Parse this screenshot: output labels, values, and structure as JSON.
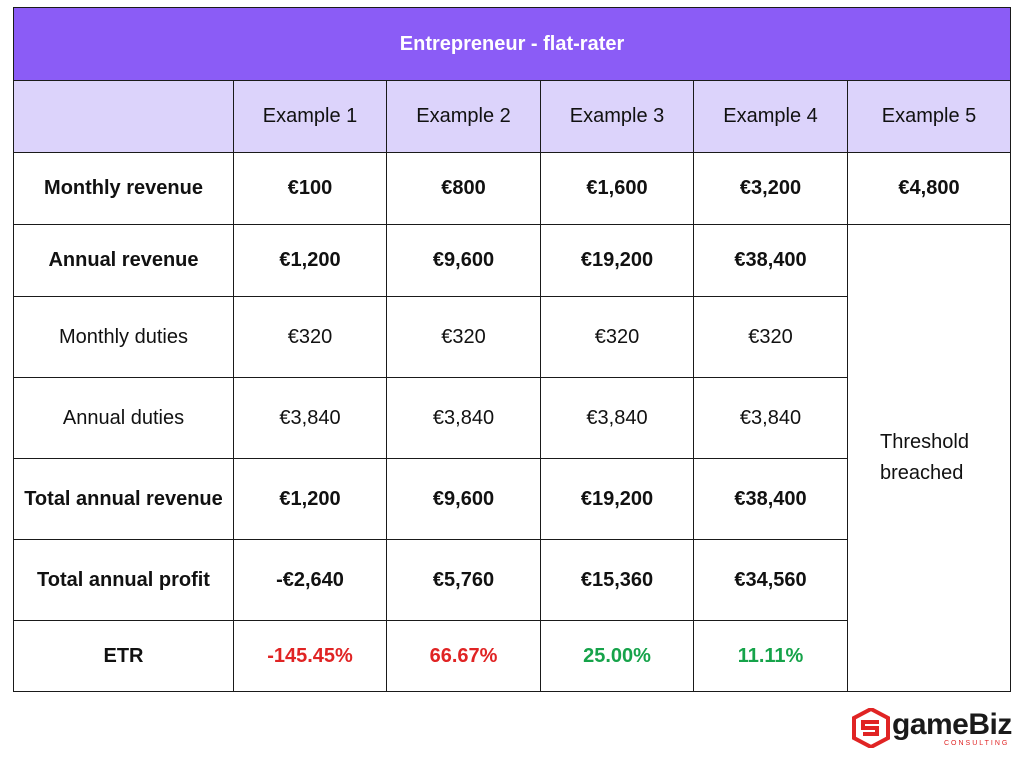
{
  "table": {
    "title": "Entrepreneur - flat-rater",
    "columns": [
      "",
      "Example 1",
      "Example 2",
      "Example 3",
      "Example 4",
      "Example 5"
    ],
    "rows": [
      {
        "label": "Monthly revenue",
        "values": [
          "€100",
          "€800",
          "€1,600",
          "€3,200",
          "€4,800"
        ]
      },
      {
        "label": "Annual revenue",
        "values": [
          "€1,200",
          "€9,600",
          "€19,200",
          "€38,400"
        ]
      },
      {
        "label": "Monthly duties",
        "values": [
          "€320",
          "€320",
          "€320",
          "€320"
        ]
      },
      {
        "label": "Annual duties",
        "values": [
          "€3,840",
          "€3,840",
          "€3,840",
          "€3,840"
        ]
      },
      {
        "label": "Total annual revenue",
        "values": [
          "€1,200",
          "€9,600",
          "€19,200",
          "€38,400"
        ]
      },
      {
        "label": "Total annual profit",
        "values": [
          "-€2,640",
          "€5,760",
          "€15,360",
          "€34,560"
        ]
      },
      {
        "label": "ETR",
        "values": [
          "-145.45%",
          "66.67%",
          "25.00%",
          "11.11%"
        ]
      }
    ],
    "threshold_note": [
      "Threshold",
      "breached"
    ]
  },
  "logo": {
    "name": "gameBiz",
    "tagline": "CONSULTING"
  },
  "colors": {
    "header_purple": "#8b5cf6",
    "subheader_lilac": "#dcd3fb",
    "negative_red": "#e02424",
    "positive_green": "#16a34a"
  }
}
